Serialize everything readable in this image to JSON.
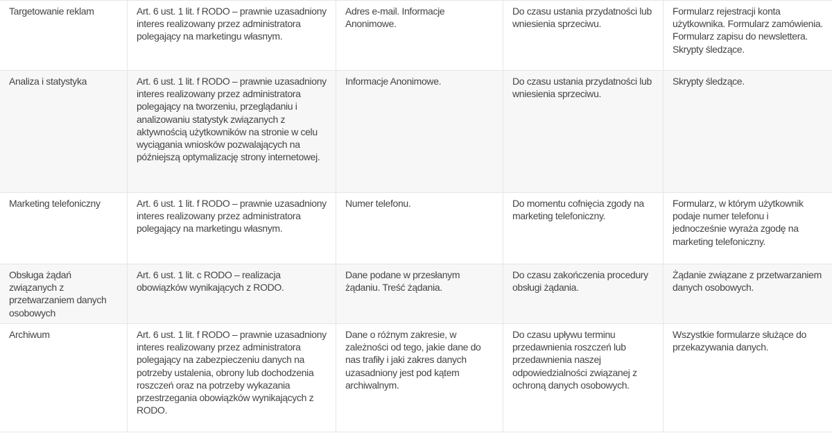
{
  "rows": [
    {
      "purpose": "Targetowanie reklam",
      "legal_basis": "Art. 6 ust. 1 lit. f RODO – prawnie uzasadniony interes realizowany przez administratora polegający na marketingu własnym.",
      "data": "Adres e-mail. Informacje Anonimowe.",
      "period": "Do czasu ustania przydatności lub wniesienia sprzeciwu.",
      "source": "Formularz rejestracji konta użytkownika. Formularz zamówienia. Formularz zapisu do newslettera. Skrypty śledzące."
    },
    {
      "purpose": "Analiza i statystyka",
      "legal_basis": "Art. 6 ust. 1 lit. f RODO – prawnie uzasadniony interes realizowany przez administratora polegający na tworzeniu, przeglądaniu i analizowaniu statystyk związanych z aktywnością użytkowników na stronie w celu wyciągania wniosków pozwalających na późniejszą optymalizację strony internetowej.",
      "data": "Informacje Anonimowe.",
      "period": "Do czasu ustania przydatności lub wniesienia sprzeciwu.",
      "source": "Skrypty śledzące."
    },
    {
      "purpose": "Marketing telefoniczny",
      "legal_basis": "Art. 6 ust. 1 lit. f RODO – prawnie uzasadniony interes realizowany przez administratora polegający na marketingu własnym.",
      "data": "Numer telefonu.",
      "period": "Do momentu cofnięcia zgody na marketing telefoniczny.",
      "source": "Formularz, w którym użytkownik podaje numer telefonu i jednocześnie wyraża zgodę na marketing telefoniczny."
    },
    {
      "purpose": "Obsługa żądań związanych z przetwarzaniem danych osobowych",
      "legal_basis": "Art. 6 ust. 1 lit. c RODO – realizacja obowiązków wynikających z RODO.",
      "data": "Dane podane w przesłanym żądaniu. Treść żądania.",
      "period": "Do czasu zakończenia procedury obsługi żądania.",
      "source": "Żądanie związane z przetwarzaniem danych osobowych."
    },
    {
      "purpose": "Archiwum",
      "legal_basis": "Art. 6 ust. 1 lit. f RODO – prawnie uzasadniony interes realizowany przez administratora polegający na zabezpieczeniu danych na potrzeby ustalenia, obrony lub dochodzenia roszczeń oraz na potrzeby wykazania przestrzegania obowiązków wynikających z RODO.",
      "data": "Dane o różnym zakresie, w zależności od tego, jakie dane do nas trafiły i jaki zakres danych uzasadniony jest pod kątem archiwalnym.",
      "period": "Do czasu upływu terminu przedawnienia roszczeń lub przedawnienia naszej odpowiedzialności związanej z ochroną danych osobowych.",
      "source": "Wszystkie formularze służące do przekazywania danych."
    }
  ]
}
